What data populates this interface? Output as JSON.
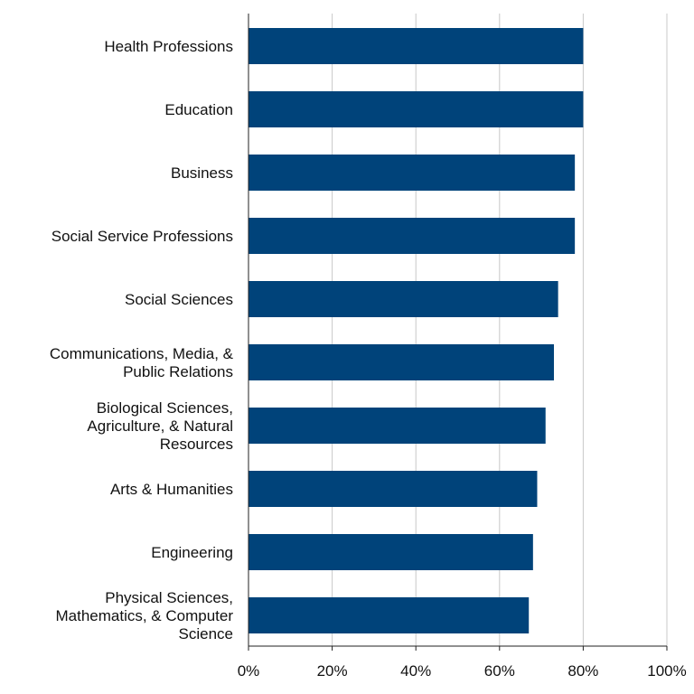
{
  "chart_data": {
    "type": "bar",
    "orientation": "horizontal",
    "categories": [
      "Health Professions",
      "Education",
      "Business",
      "Social Service Professions",
      "Social Sciences",
      "Communications, Media, & Public Relations",
      "Biological Sciences, Agriculture, & Natural Resources",
      "Arts & Humanities",
      "Engineering",
      "Physical Sciences, Mathematics, & Computer Science"
    ],
    "category_lines": [
      [
        "Health Professions"
      ],
      [
        "Education"
      ],
      [
        "Business"
      ],
      [
        "Social Service Professions"
      ],
      [
        "Social Sciences"
      ],
      [
        "Communications, Media, &",
        "Public Relations"
      ],
      [
        "Biological Sciences,",
        "Agriculture, & Natural",
        "Resources"
      ],
      [
        "Arts & Humanities"
      ],
      [
        "Engineering"
      ],
      [
        "Physical Sciences,",
        "Mathematics, & Computer",
        "Science"
      ]
    ],
    "values": [
      80,
      80,
      78,
      78,
      74,
      73,
      71,
      69,
      68,
      67
    ],
    "xlim": [
      0,
      100
    ],
    "xticks": [
      0,
      20,
      40,
      60,
      80,
      100
    ],
    "xtick_labels": [
      "0%",
      "20%",
      "40%",
      "60%",
      "80%",
      "100%"
    ],
    "grid": "vertical",
    "title": "",
    "xlabel": "",
    "ylabel": "",
    "colors": {
      "bar": "#00437a",
      "grid": "#c8c8c8",
      "axis": "#222222"
    }
  }
}
